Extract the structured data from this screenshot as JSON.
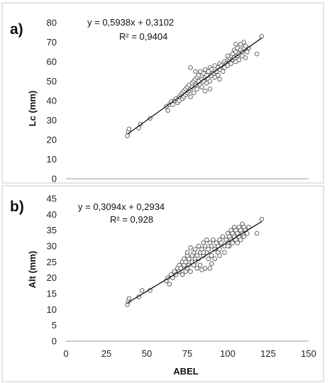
{
  "chart_data": [
    {
      "type": "scatter",
      "panel_label": "a)",
      "ylabel": "Lc (mm)",
      "xlabel": "",
      "xlim": [
        0,
        150
      ],
      "ylim": [
        0,
        80
      ],
      "yticks": [
        0,
        10,
        20,
        30,
        40,
        50,
        60,
        70,
        80
      ],
      "equation": "y = 0,5938x + 0,3102",
      "r_squared": "R² = 0,9404",
      "trendline": {
        "slope": 0.5938,
        "intercept": 0.3102,
        "x_range": [
          38,
          121
        ]
      },
      "grid": false,
      "series": [
        {
          "points": [
            [
              38,
              22
            ],
            [
              38.5,
              24
            ],
            [
              39,
              25.5
            ],
            [
              45,
              26
            ],
            [
              46,
              28
            ],
            [
              52,
              31
            ],
            [
              62,
              37
            ],
            [
              63,
              35
            ],
            [
              64,
              38
            ],
            [
              65,
              39.5
            ],
            [
              66,
              38
            ],
            [
              67,
              40
            ],
            [
              68,
              41
            ],
            [
              69,
              39
            ],
            [
              70,
              42
            ],
            [
              70,
              40
            ],
            [
              71,
              43
            ],
            [
              72,
              44
            ],
            [
              72,
              41
            ],
            [
              73,
              45
            ],
            [
              73,
              42
            ],
            [
              74,
              46
            ],
            [
              74,
              43
            ],
            [
              75,
              44
            ],
            [
              75,
              47
            ],
            [
              76,
              45
            ],
            [
              76,
              48
            ],
            [
              77,
              46
            ],
            [
              77,
              42
            ],
            [
              78,
              49
            ],
            [
              78,
              47
            ],
            [
              79,
              50
            ],
            [
              79,
              44
            ],
            [
              80,
              48
            ],
            [
              80,
              51
            ],
            [
              81,
              52
            ],
            [
              81,
              46
            ],
            [
              82,
              50
            ],
            [
              82,
              53
            ],
            [
              83,
              48
            ],
            [
              83,
              55
            ],
            [
              84,
              51
            ],
            [
              84,
              47
            ],
            [
              85,
              54
            ],
            [
              85,
              50
            ],
            [
              86,
              52
            ],
            [
              86,
              56
            ],
            [
              87,
              49
            ],
            [
              87,
              53
            ],
            [
              88,
              55
            ],
            [
              88,
              51
            ],
            [
              89,
              57
            ],
            [
              89,
              50
            ],
            [
              90,
              53
            ],
            [
              90,
              56
            ],
            [
              91,
              54
            ],
            [
              92,
              52
            ],
            [
              92,
              58
            ],
            [
              93,
              55
            ],
            [
              94,
              57
            ],
            [
              94,
              53
            ],
            [
              95,
              56
            ],
            [
              95,
              59
            ],
            [
              96,
              58
            ],
            [
              97,
              55
            ],
            [
              98,
              57
            ],
            [
              98,
              60
            ],
            [
              99,
              59
            ],
            [
              100,
              61
            ],
            [
              100,
              58
            ],
            [
              101,
              60
            ],
            [
              101,
              62
            ],
            [
              102,
              63
            ],
            [
              102,
              59
            ],
            [
              103,
              61
            ],
            [
              103,
              64
            ],
            [
              104,
              62
            ],
            [
              104,
              66
            ],
            [
              105,
              60
            ],
            [
              105,
              65
            ],
            [
              106,
              63
            ],
            [
              106,
              67
            ],
            [
              107,
              64
            ],
            [
              107,
              61
            ],
            [
              108,
              66
            ],
            [
              108,
              69
            ],
            [
              109,
              63
            ],
            [
              109,
              65
            ],
            [
              110,
              67
            ],
            [
              110,
              70
            ],
            [
              111,
              62
            ],
            [
              111,
              68
            ],
            [
              112,
              65
            ],
            [
              113,
              67
            ],
            [
              118,
              64
            ],
            [
              121,
              73
            ],
            [
              77,
              57
            ],
            [
              80,
              55
            ],
            [
              89,
              46
            ],
            [
              95,
              51
            ],
            [
              100,
              63
            ],
            [
              86,
              45
            ],
            [
              105,
              69
            ]
          ]
        }
      ]
    },
    {
      "type": "scatter",
      "panel_label": "b)",
      "ylabel": "Alt (mm)",
      "xlabel": "ABEL",
      "xlim": [
        0,
        150
      ],
      "ylim": [
        0,
        45
      ],
      "yticks": [
        0,
        5,
        10,
        15,
        20,
        25,
        30,
        35,
        40,
        45
      ],
      "xticks": [
        0,
        25,
        50,
        75,
        100,
        125,
        150
      ],
      "equation": "y = 0,3094x + 0,2934",
      "r_squared": "R² = 0,928",
      "trendline": {
        "slope": 0.3094,
        "intercept": 0.2934,
        "x_range": [
          38,
          121
        ]
      },
      "grid": false,
      "series": [
        {
          "points": [
            [
              38,
              11.5
            ],
            [
              38.5,
              12.5
            ],
            [
              39,
              13.5
            ],
            [
              45,
              14
            ],
            [
              47,
              16
            ],
            [
              52,
              16
            ],
            [
              62,
              19
            ],
            [
              63,
              20
            ],
            [
              64,
              18
            ],
            [
              65,
              21
            ],
            [
              66,
              20
            ],
            [
              67,
              22
            ],
            [
              68,
              21
            ],
            [
              69,
              23
            ],
            [
              70,
              22
            ],
            [
              70,
              24
            ],
            [
              71,
              23
            ],
            [
              72,
              25
            ],
            [
              72,
              21
            ],
            [
              73,
              24
            ],
            [
              73,
              26
            ],
            [
              74,
              22
            ],
            [
              74,
              25
            ],
            [
              75,
              27
            ],
            [
              75,
              23
            ],
            [
              76,
              26
            ],
            [
              76,
              24
            ],
            [
              77,
              29.5
            ],
            [
              77,
              22
            ],
            [
              78,
              27
            ],
            [
              78,
              25
            ],
            [
              79,
              28
            ],
            [
              79,
              24
            ],
            [
              80,
              26
            ],
            [
              80,
              29
            ],
            [
              81,
              27
            ],
            [
              81,
              23
            ],
            [
              82,
              30
            ],
            [
              82,
              26
            ],
            [
              83,
              28
            ],
            [
              83,
              24
            ],
            [
              84,
              29
            ],
            [
              84,
              22.5
            ],
            [
              85,
              31
            ],
            [
              85,
              27
            ],
            [
              86,
              30
            ],
            [
              86,
              23
            ],
            [
              87,
              28
            ],
            [
              87,
              32
            ],
            [
              88,
              29
            ],
            [
              88,
              26
            ],
            [
              89,
              31
            ],
            [
              89,
              23
            ],
            [
              90,
              30
            ],
            [
              90,
              27
            ],
            [
              91,
              32
            ],
            [
              92,
              29
            ],
            [
              92,
              26
            ],
            [
              93,
              31
            ],
            [
              94,
              30
            ],
            [
              94,
              28
            ],
            [
              95,
              32
            ],
            [
              95,
              27
            ],
            [
              96,
              31
            ],
            [
              97,
              33
            ],
            [
              98,
              30
            ],
            [
              98,
              28
            ],
            [
              99,
              32
            ],
            [
              100,
              31
            ],
            [
              100,
              34
            ],
            [
              101,
              33
            ],
            [
              101,
              30
            ],
            [
              102,
              35
            ],
            [
              102,
              32
            ],
            [
              103,
              34
            ],
            [
              103,
              31
            ],
            [
              104,
              36
            ],
            [
              104,
              33
            ],
            [
              105,
              32
            ],
            [
              105,
              35
            ],
            [
              106,
              34
            ],
            [
              106,
              31
            ],
            [
              107,
              36
            ],
            [
              107,
              33
            ],
            [
              108,
              35
            ],
            [
              108,
              32
            ],
            [
              109,
              34
            ],
            [
              109,
              37
            ],
            [
              110,
              33
            ],
            [
              110,
              36
            ],
            [
              111,
              35
            ],
            [
              112,
              34
            ],
            [
              113,
              36
            ],
            [
              118,
              34
            ],
            [
              121,
              38.5
            ],
            [
              80,
              25
            ],
            [
              90,
              24.5
            ],
            [
              95,
              29
            ],
            [
              100,
              30
            ],
            [
              85,
              28
            ],
            [
              75,
              28
            ]
          ]
        }
      ]
    }
  ]
}
